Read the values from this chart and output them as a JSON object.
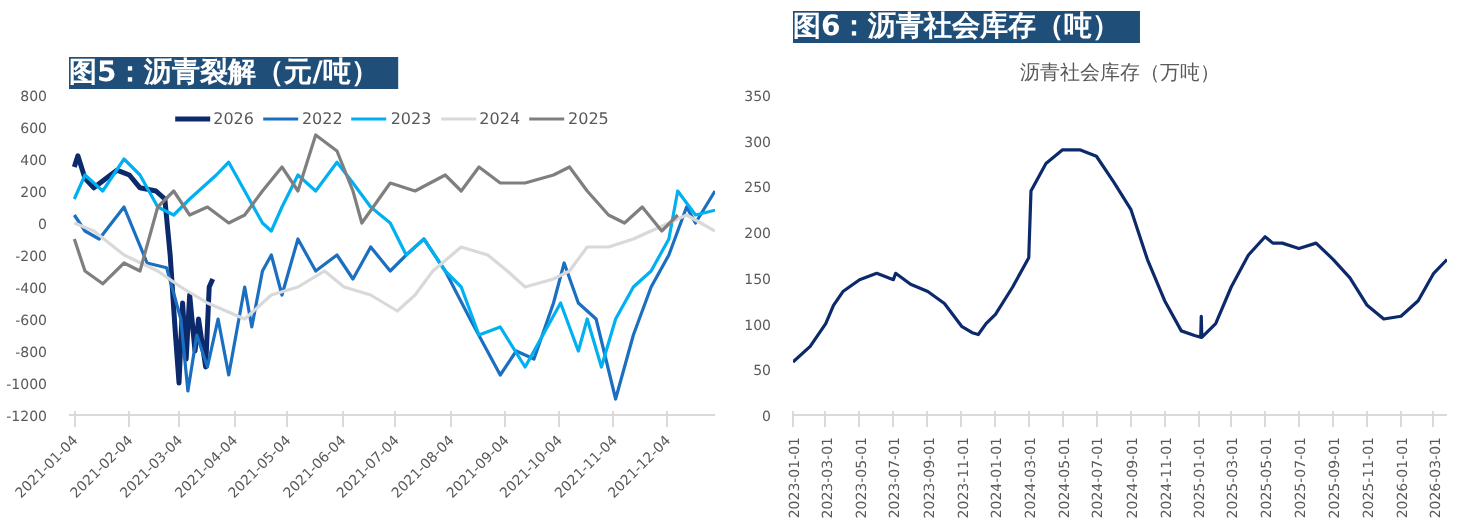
{
  "chart_data": [
    {
      "type": "line",
      "title": "图5：沥青裂解（元/吨）",
      "legend": "top",
      "grid": false,
      "line_style": "solid",
      "marker": "none",
      "xlim": [
        "2021-01-01",
        "2021-12-31"
      ],
      "xticks": [
        {
          "value": "2021-01-04",
          "label": "2021-01-04"
        },
        {
          "value": "2021-02-04",
          "label": "2021-02-04"
        },
        {
          "value": "2021-03-04",
          "label": "2021-03-04"
        },
        {
          "value": "2021-04-04",
          "label": "2021-04-04"
        },
        {
          "value": "2021-05-04",
          "label": "2021-05-04"
        },
        {
          "value": "2021-06-04",
          "label": "2021-06-04"
        },
        {
          "value": "2021-07-04",
          "label": "2021-07-04"
        },
        {
          "value": "2021-08-04",
          "label": "2021-08-04"
        },
        {
          "value": "2021-09-04",
          "label": "2021-09-04"
        },
        {
          "value": "2021-10-04",
          "label": "2021-10-04"
        },
        {
          "value": "2021-11-04",
          "label": "2021-11-04"
        },
        {
          "value": "2021-12-04",
          "label": "2021-12-04"
        }
      ],
      "ylim": [
        -1200,
        800
      ],
      "yticks": [
        -1200,
        -1000,
        -800,
        -600,
        -400,
        -200,
        0,
        200,
        400,
        600,
        800
      ],
      "series": [
        {
          "name": "2026",
          "color": "#0c2a6b",
          "x": [
            "2021-01-04",
            "2021-01-06",
            "2021-01-10",
            "2021-01-15",
            "2021-01-22",
            "2021-01-28",
            "2021-02-04",
            "2021-02-10",
            "2021-02-19",
            "2021-02-24",
            "2021-02-27",
            "2021-03-02",
            "2021-03-04",
            "2021-03-06",
            "2021-03-08",
            "2021-03-10",
            "2021-03-13",
            "2021-03-15",
            "2021-03-19",
            "2021-03-21",
            "2021-03-23"
          ],
          "values": [
            350,
            420,
            280,
            220,
            280,
            330,
            300,
            220,
            200,
            150,
            -200,
            -700,
            -1000,
            -500,
            -850,
            -450,
            -800,
            -600,
            -900,
            -400,
            -350
          ]
        },
        {
          "name": "2022",
          "color": "#1a6fc0",
          "x": [
            "2021-01-04",
            "2021-01-10",
            "2021-01-18",
            "2021-02-01",
            "2021-02-14",
            "2021-02-25",
            "2021-03-05",
            "2021-03-09",
            "2021-03-14",
            "2021-03-20",
            "2021-03-26",
            "2021-04-01",
            "2021-04-10",
            "2021-04-14",
            "2021-04-20",
            "2021-04-25",
            "2021-05-01",
            "2021-05-10",
            "2021-05-20",
            "2021-06-01",
            "2021-06-10",
            "2021-06-20",
            "2021-07-01",
            "2021-07-10",
            "2021-07-20",
            "2021-08-01",
            "2021-08-15",
            "2021-09-01",
            "2021-09-10",
            "2021-09-20",
            "2021-10-01",
            "2021-10-07",
            "2021-10-15",
            "2021-10-25",
            "2021-11-05",
            "2021-11-15",
            "2021-11-25",
            "2021-12-05",
            "2021-12-15",
            "2021-12-20",
            "2021-12-31"
          ],
          "values": [
            50,
            -50,
            -100,
            100,
            -250,
            -280,
            -600,
            -1050,
            -700,
            -900,
            -600,
            -950,
            -400,
            -650,
            -300,
            -200,
            -450,
            -100,
            -300,
            -200,
            -350,
            -150,
            -300,
            -200,
            -100,
            -300,
            -600,
            -950,
            -800,
            -850,
            -500,
            -250,
            -500,
            -600,
            -1100,
            -700,
            -400,
            -200,
            100,
            0,
            200
          ]
        },
        {
          "name": "2023",
          "color": "#00b0f0",
          "x": [
            "2021-01-04",
            "2021-01-10",
            "2021-01-20",
            "2021-02-01",
            "2021-02-10",
            "2021-02-20",
            "2021-03-01",
            "2021-03-10",
            "2021-03-25",
            "2021-04-01",
            "2021-04-10",
            "2021-04-20",
            "2021-04-25",
            "2021-05-01",
            "2021-05-10",
            "2021-05-20",
            "2021-06-01",
            "2021-06-10",
            "2021-06-20",
            "2021-07-01",
            "2021-07-10",
            "2021-07-20",
            "2021-08-01",
            "2021-08-10",
            "2021-08-20",
            "2021-09-01",
            "2021-09-15",
            "2021-09-25",
            "2021-10-05",
            "2021-10-15",
            "2021-10-20",
            "2021-10-28",
            "2021-11-05",
            "2021-11-15",
            "2021-11-25",
            "2021-12-05",
            "2021-12-10",
            "2021-12-20",
            "2021-12-31"
          ],
          "values": [
            150,
            300,
            200,
            400,
            300,
            100,
            50,
            150,
            300,
            380,
            200,
            0,
            -50,
            100,
            300,
            200,
            380,
            250,
            100,
            0,
            -200,
            -100,
            -300,
            -400,
            -700,
            -650,
            -900,
            -700,
            -500,
            -800,
            -600,
            -900,
            -600,
            -400,
            -300,
            -100,
            200,
            50,
            80
          ]
        },
        {
          "name": "2024",
          "color": "#d9d9d9",
          "x": [
            "2021-01-04",
            "2021-01-15",
            "2021-02-01",
            "2021-02-20",
            "2021-03-05",
            "2021-03-20",
            "2021-04-10",
            "2021-04-25",
            "2021-05-10",
            "2021-05-25",
            "2021-06-05",
            "2021-06-20",
            "2021-07-05",
            "2021-07-15",
            "2021-07-25",
            "2021-08-10",
            "2021-08-25",
            "2021-09-05",
            "2021-09-15",
            "2021-10-01",
            "2021-10-10",
            "2021-10-20",
            "2021-11-01",
            "2021-11-15",
            "2021-11-25",
            "2021-12-05",
            "2021-12-15",
            "2021-12-31"
          ],
          "values": [
            0,
            -50,
            -200,
            -300,
            -400,
            -500,
            -600,
            -450,
            -400,
            -300,
            -400,
            -450,
            -550,
            -450,
            -300,
            -150,
            -200,
            -300,
            -400,
            -350,
            -300,
            -150,
            -150,
            -100,
            -50,
            0,
            50,
            -50
          ]
        },
        {
          "name": "2025",
          "color": "#7f7f7f",
          "x": [
            "2021-01-04",
            "2021-01-10",
            "2021-01-20",
            "2021-02-01",
            "2021-02-10",
            "2021-02-20",
            "2021-03-01",
            "2021-03-10",
            "2021-03-20",
            "2021-04-01",
            "2021-04-10",
            "2021-04-20",
            "2021-05-01",
            "2021-05-10",
            "2021-05-20",
            "2021-06-01",
            "2021-06-10",
            "2021-06-15",
            "2021-07-01",
            "2021-07-15",
            "2021-08-01",
            "2021-08-10",
            "2021-08-20",
            "2021-09-01",
            "2021-09-15",
            "2021-10-01",
            "2021-10-10",
            "2021-10-20",
            "2021-11-01",
            "2021-11-10",
            "2021-11-20",
            "2021-12-01",
            "2021-12-10"
          ],
          "values": [
            -100,
            -300,
            -380,
            -250,
            -300,
            100,
            200,
            50,
            100,
            0,
            50,
            200,
            350,
            200,
            550,
            450,
            200,
            0,
            250,
            200,
            300,
            200,
            350,
            250,
            250,
            300,
            350,
            200,
            50,
            0,
            100,
            -50,
            50
          ]
        }
      ]
    },
    {
      "type": "line",
      "title": "图6：沥青社会库存（吨）",
      "subtitle": "沥青社会库存（万吨）",
      "legend": false,
      "grid": false,
      "line_style": "solid",
      "marker": "none",
      "xlim": [
        "2023-01-01",
        "2026-03-25"
      ],
      "xticks": [
        {
          "value": "2023-01-01",
          "label": "2023-01-01"
        },
        {
          "value": "2023-03-01",
          "label": "2023-03-01"
        },
        {
          "value": "2023-05-01",
          "label": "2023-05-01"
        },
        {
          "value": "2023-07-01",
          "label": "2023-07-01"
        },
        {
          "value": "2023-09-01",
          "label": "2023-09-01"
        },
        {
          "value": "2023-11-01",
          "label": "2023-11-01"
        },
        {
          "value": "2024-01-01",
          "label": "2024-01-01"
        },
        {
          "value": "2024-03-01",
          "label": "2024-03-01"
        },
        {
          "value": "2024-05-01",
          "label": "2024-05-01"
        },
        {
          "value": "2024-07-01",
          "label": "2024-07-01"
        },
        {
          "value": "2024-09-01",
          "label": "2024-09-01"
        },
        {
          "value": "2024-11-01",
          "label": "2024-11-01"
        },
        {
          "value": "2025-01-01",
          "label": "2025-01-01"
        },
        {
          "value": "2025-03-01",
          "label": "2025-03-01"
        },
        {
          "value": "2025-05-01",
          "label": "2025-05-01"
        },
        {
          "value": "2025-07-01",
          "label": "2025-07-01"
        },
        {
          "value": "2025-09-01",
          "label": "2025-09-01"
        },
        {
          "value": "2025-11-01",
          "label": "2025-11-01"
        },
        {
          "value": "2026-01-01",
          "label": "2026-01-01"
        },
        {
          "value": "2026-03-01",
          "label": "2026-03-01"
        }
      ],
      "ylim": [
        0,
        350
      ],
      "yticks": [
        0,
        50,
        100,
        150,
        200,
        250,
        300,
        350
      ],
      "series": [
        {
          "color": "#0c2a6b",
          "x": [
            "2023-01-01",
            "2023-02-01",
            "2023-03-01",
            "2023-03-15",
            "2023-04-01",
            "2023-05-01",
            "2023-06-01",
            "2023-07-01",
            "2023-07-05",
            "2023-08-01",
            "2023-09-01",
            "2023-10-01",
            "2023-11-01",
            "2023-11-20",
            "2023-12-01",
            "2023-12-15",
            "2024-01-01",
            "2024-02-01",
            "2024-03-01",
            "2024-03-05",
            "2024-04-01",
            "2024-05-01",
            "2024-06-01",
            "2024-07-01",
            "2024-08-01",
            "2024-09-01",
            "2024-10-01",
            "2024-11-01",
            "2024-12-01",
            "2024-12-25",
            "2025-01-05",
            "2025-01-06",
            "2025-01-07",
            "2025-02-01",
            "2025-03-01",
            "2025-04-01",
            "2025-05-01",
            "2025-05-15",
            "2025-06-01",
            "2025-07-01",
            "2025-08-01",
            "2025-09-01",
            "2025-10-01",
            "2025-11-01",
            "2025-12-01",
            "2026-01-01",
            "2026-02-01",
            "2026-03-01",
            "2026-03-25"
          ],
          "values": [
            58,
            75,
            100,
            120,
            135,
            148,
            155,
            148,
            155,
            143,
            135,
            122,
            97,
            90,
            88,
            100,
            110,
            140,
            172,
            245,
            275,
            290,
            290,
            283,
            255,
            225,
            170,
            125,
            92,
            87,
            85,
            108,
            85,
            100,
            140,
            175,
            195,
            188,
            188,
            182,
            188,
            170,
            150,
            120,
            105,
            108,
            125,
            155,
            170
          ]
        }
      ]
    }
  ]
}
